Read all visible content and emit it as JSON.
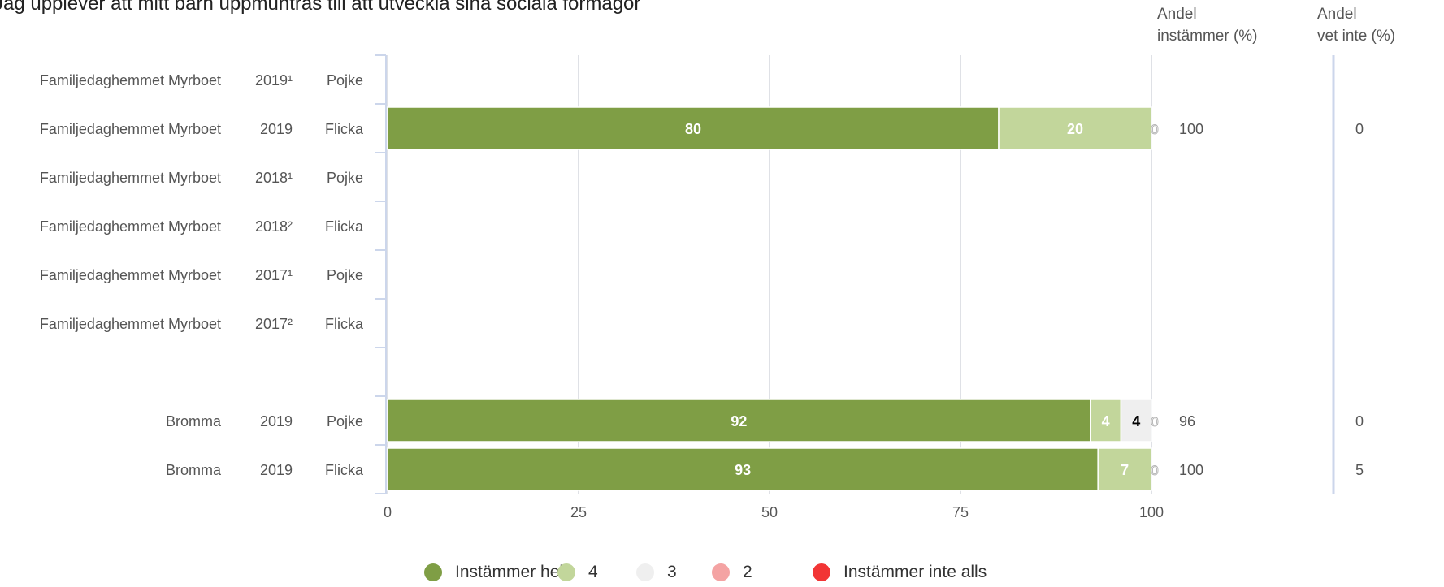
{
  "title": "Jag upplever att mitt barn uppmuntras till att utveckla sina sociala förmågor",
  "columns": {
    "agree": [
      "Andel",
      "instämmer (%)"
    ],
    "dontknow": [
      "Andel",
      "vet inte (%)"
    ]
  },
  "colors": {
    "s5": "#7f9e45",
    "s4": "#c2d69b",
    "s3": "#efefef",
    "s2": "#f4a3a3",
    "s1": "#f23535",
    "grid": "#dfe1e6",
    "axis": "#ccd6eb"
  },
  "chart_data": {
    "type": "bar",
    "orientation": "horizontal",
    "stacked": true,
    "title": "Jag upplever att mitt barn uppmuntras till att utveckla sina sociala förmågor",
    "xlim": [
      0,
      100
    ],
    "xticks": [
      "0",
      "25",
      "50",
      "75",
      "100"
    ],
    "grid": true,
    "legend_position": "bottom",
    "series": [
      {
        "name": "Instämmer helt",
        "color": "#7f9e45"
      },
      {
        "name": "4",
        "color": "#c2d69b"
      },
      {
        "name": "3",
        "color": "#efefef"
      },
      {
        "name": "2",
        "color": "#f4a3a3"
      },
      {
        "name": "Instämmer inte alls",
        "color": "#f23535"
      }
    ],
    "rows": [
      {
        "unit": "Familjedaghemmet Myrboet",
        "year": "2019¹",
        "gender": "Pojke",
        "values": null,
        "agree": "",
        "dontknow": ""
      },
      {
        "unit": "Familjedaghemmet Myrboet",
        "year": "2019",
        "gender": "Flicka",
        "values": [
          80,
          20,
          0,
          0,
          0
        ],
        "labels": [
          "80",
          "20",
          "0",
          "",
          ""
        ],
        "agree": "100",
        "dontknow": "0"
      },
      {
        "unit": "Familjedaghemmet Myrboet",
        "year": "2018¹",
        "gender": "Pojke",
        "values": null,
        "agree": "",
        "dontknow": ""
      },
      {
        "unit": "Familjedaghemmet Myrboet",
        "year": "2018²",
        "gender": "Flicka",
        "values": null,
        "agree": "",
        "dontknow": ""
      },
      {
        "unit": "Familjedaghemmet Myrboet",
        "year": "2017¹",
        "gender": "Pojke",
        "values": null,
        "agree": "",
        "dontknow": ""
      },
      {
        "unit": "Familjedaghemmet Myrboet",
        "year": "2017²",
        "gender": "Flicka",
        "values": null,
        "agree": "",
        "dontknow": ""
      },
      {
        "unit": "",
        "year": "",
        "gender": "",
        "values": null,
        "agree": "",
        "dontknow": "",
        "spacer": true
      },
      {
        "unit": "Bromma",
        "year": "2019",
        "gender": "Pojke",
        "values": [
          92,
          4,
          4,
          0,
          0
        ],
        "labels": [
          "92",
          "4",
          "4",
          "0",
          ""
        ],
        "agree": "96",
        "dontknow": "0"
      },
      {
        "unit": "Bromma",
        "year": "2019",
        "gender": "Flicka",
        "values": [
          93,
          7,
          0,
          0,
          0
        ],
        "labels": [
          "93",
          "7",
          "0",
          "",
          ""
        ],
        "agree": "100",
        "dontknow": "5"
      }
    ]
  }
}
